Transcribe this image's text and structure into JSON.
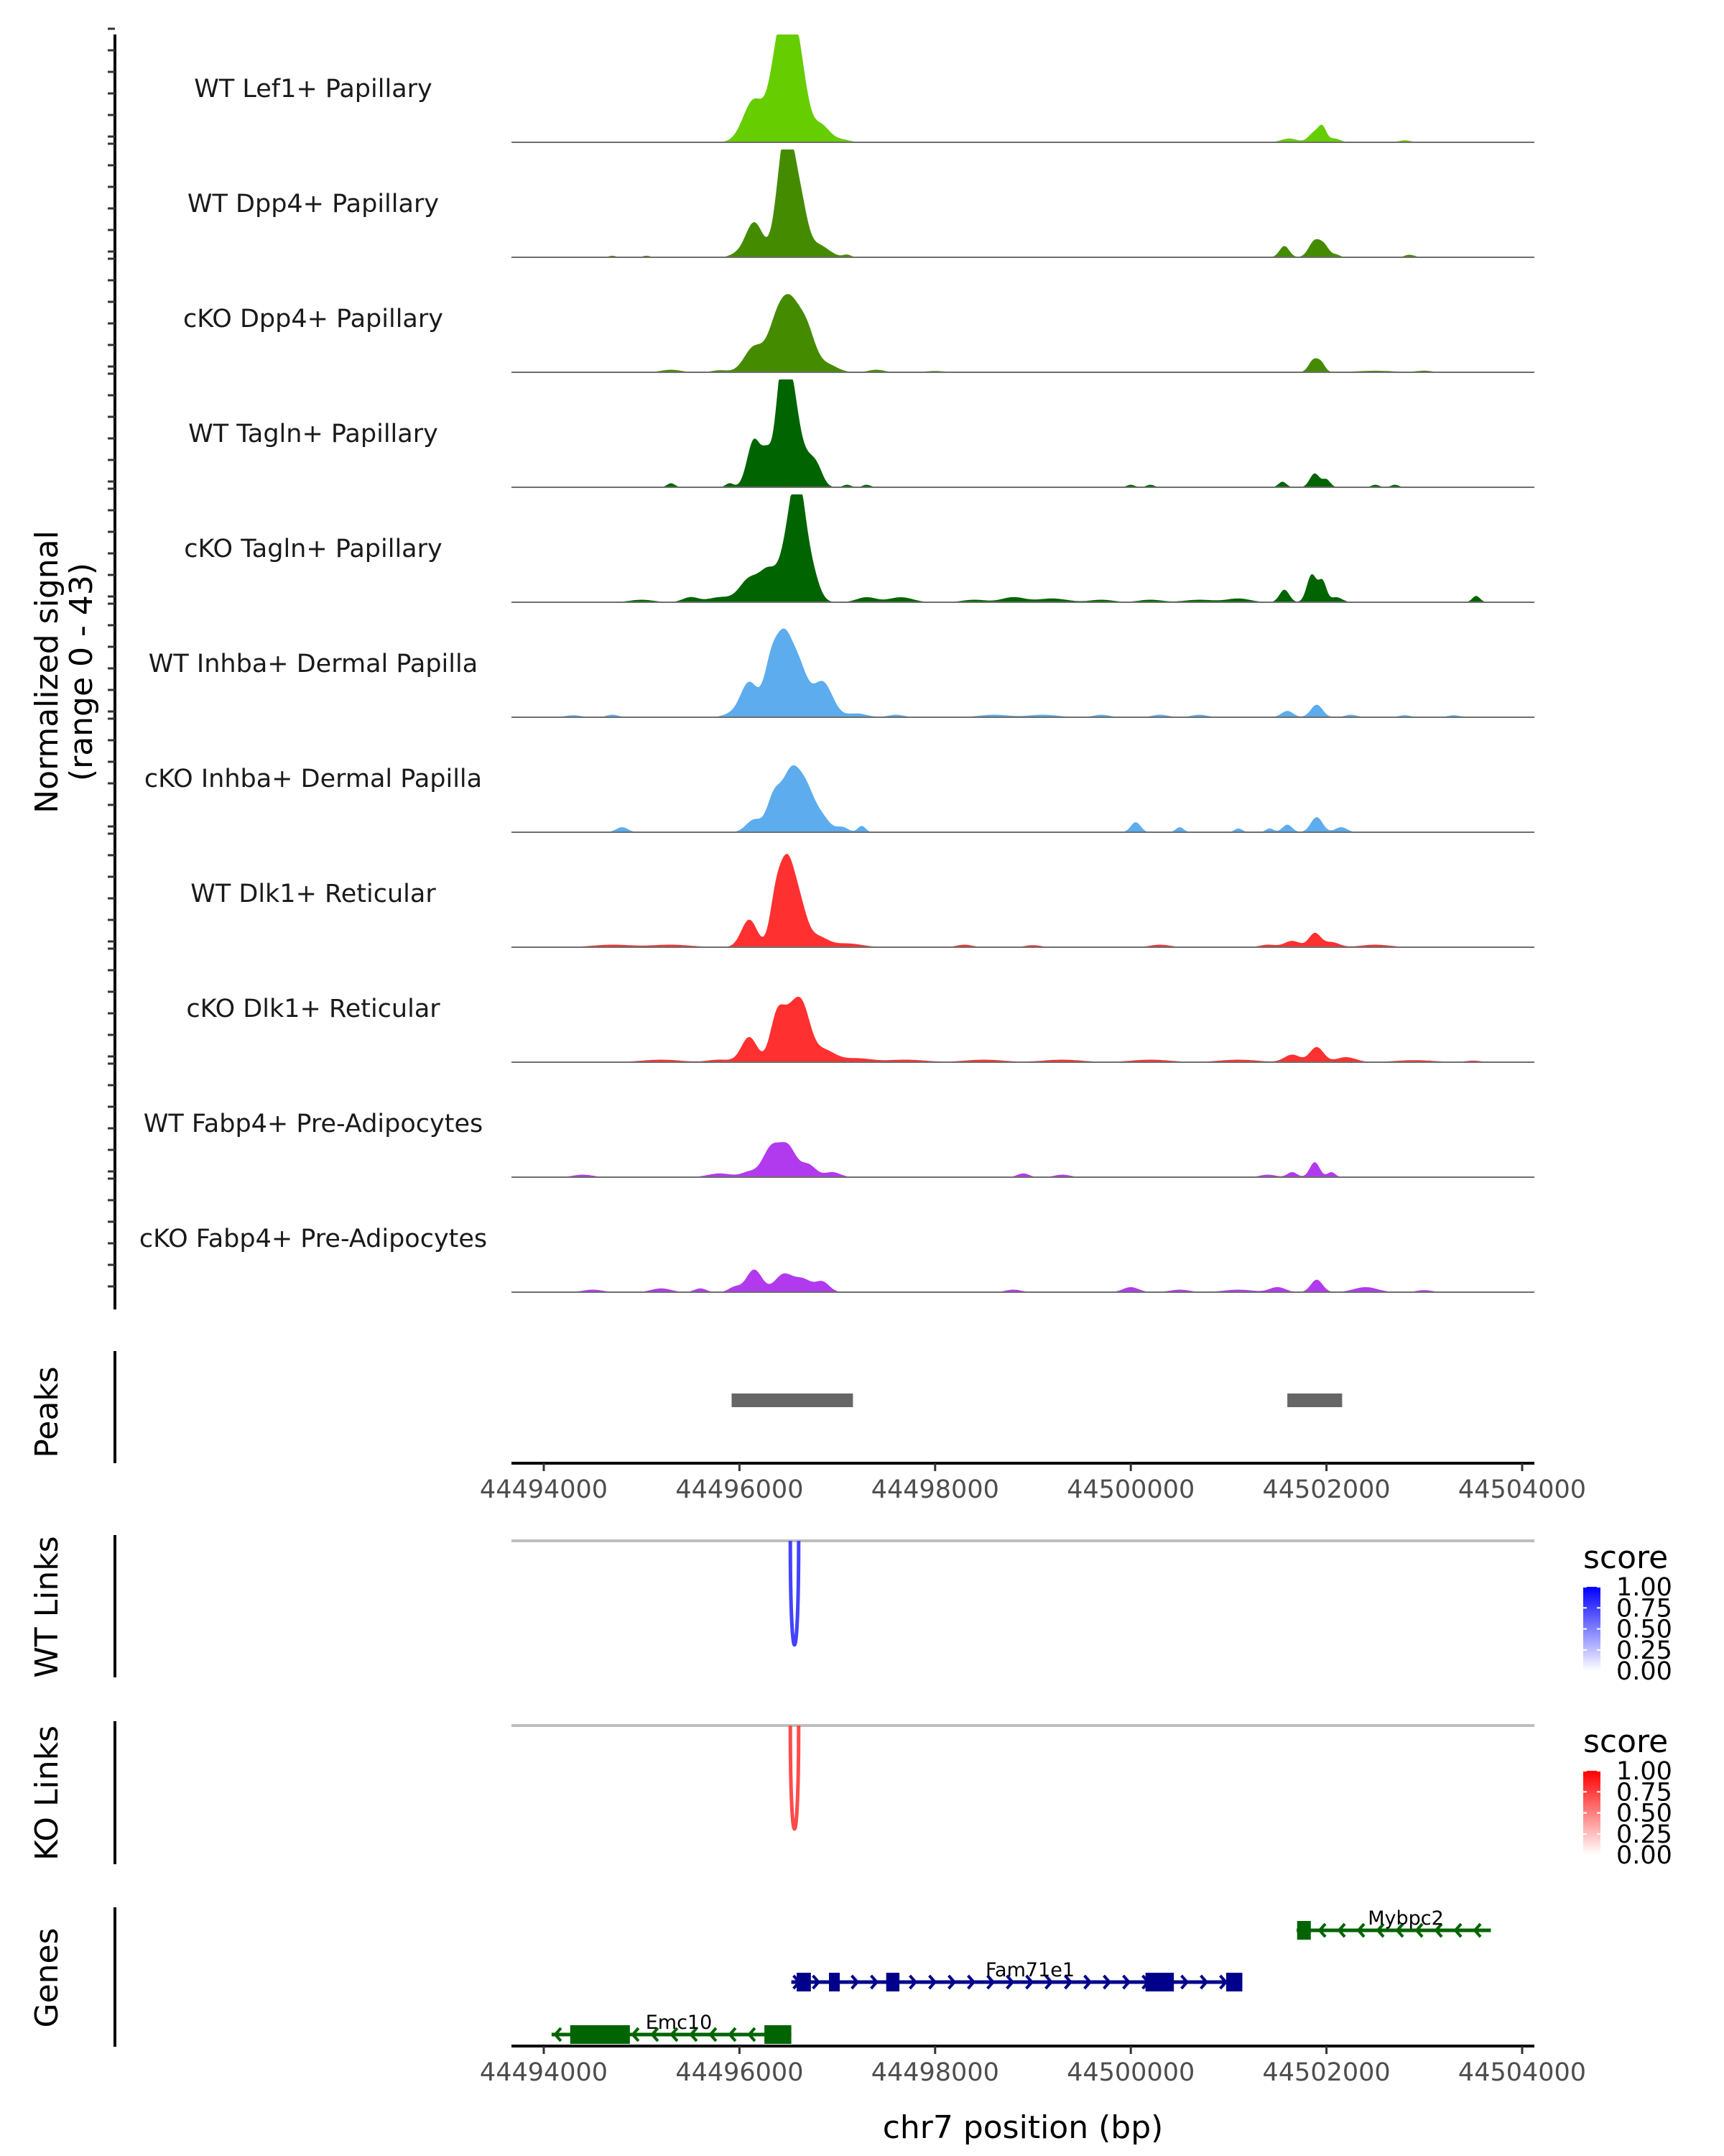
{
  "chart_data": {
    "type": "area",
    "title": "",
    "region": {
      "chrom": "chr7",
      "start": 44493700,
      "end": 44504100
    },
    "xlabel": "chr7 position (bp)",
    "x_ticks": [
      44494000,
      44496000,
      44498000,
      44500000,
      44502000,
      44504000
    ],
    "x_tick_labels": [
      "44494000",
      "44496000",
      "44498000",
      "44500000",
      "44502000",
      "44504000"
    ],
    "coverage": {
      "ylabel_line1": "Normalized signal",
      "ylabel_line2": "(range 0 - 43)",
      "ylim": [
        0,
        43
      ],
      "tracks": [
        {
          "name": "WT Lef1+ Papillary",
          "color": "#66CD00",
          "peaks": [
            [
              44496150,
              17,
              110
            ],
            [
              44496380,
              24,
              80
            ],
            [
              44496500,
              41,
              90
            ],
            [
              44496620,
              22,
              80
            ],
            [
              44496830,
              7,
              90
            ],
            [
              44497050,
              1,
              80
            ],
            [
              44501620,
              1.5,
              80
            ],
            [
              44501880,
              4,
              60
            ],
            [
              44501960,
              5,
              40
            ],
            [
              44502080,
              1.5,
              60
            ],
            [
              44502800,
              0.8,
              60
            ]
          ]
        },
        {
          "name": "WT Dpp4+ Papillary",
          "color": "#458B00",
          "peaks": [
            [
              44495950,
              0.8,
              60
            ],
            [
              44496150,
              14,
              90
            ],
            [
              44496420,
              22,
              70
            ],
            [
              44496500,
              37,
              70
            ],
            [
              44496620,
              20,
              70
            ],
            [
              44496800,
              5,
              110
            ],
            [
              44497100,
              1,
              40
            ],
            [
              44501570,
              4.5,
              50
            ],
            [
              44501880,
              6.5,
              60
            ],
            [
              44501980,
              4,
              50
            ],
            [
              44502100,
              1,
              40
            ],
            [
              44502850,
              1,
              50
            ],
            [
              44494700,
              0.6,
              40
            ],
            [
              44495050,
              0.6,
              40
            ]
          ]
        },
        {
          "name": "cKO Dpp4+ Papillary",
          "color": "#458B00",
          "peaks": [
            [
              44495300,
              1,
              100
            ],
            [
              44495800,
              0.8,
              80
            ],
            [
              44496150,
              10,
              100
            ],
            [
              44496380,
              18,
              90
            ],
            [
              44496520,
              22,
              90
            ],
            [
              44496680,
              17,
              90
            ],
            [
              44496900,
              3,
              100
            ],
            [
              44497400,
              1,
              80
            ],
            [
              44498000,
              0.5,
              100
            ],
            [
              44501870,
              5,
              50
            ],
            [
              44501950,
              3,
              40
            ],
            [
              44502500,
              0.6,
              200
            ],
            [
              44503000,
              0.6,
              80
            ]
          ]
        },
        {
          "name": "WT Tagln+ Papillary",
          "color": "#006400",
          "peaks": [
            [
              44495300,
              1.6,
              40
            ],
            [
              44495900,
              1.6,
              40
            ],
            [
              44496150,
              19,
              70
            ],
            [
              44496280,
              11,
              50
            ],
            [
              44496420,
              30,
              60
            ],
            [
              44496520,
              41,
              80
            ],
            [
              44496700,
              10,
              80
            ],
            [
              44496800,
              5,
              60
            ],
            [
              44497100,
              1,
              40
            ],
            [
              44497300,
              1,
              40
            ],
            [
              44500000,
              1,
              40
            ],
            [
              44500200,
              1,
              40
            ],
            [
              44501550,
              2.2,
              40
            ],
            [
              44501880,
              5.5,
              50
            ],
            [
              44502000,
              3,
              40
            ],
            [
              44502500,
              1,
              40
            ],
            [
              44502700,
              1,
              40
            ]
          ]
        },
        {
          "name": "cKO Tagln+ Papillary",
          "color": "#006400",
          "peaks": [
            [
              44495000,
              1,
              120
            ],
            [
              44495500,
              2,
              80
            ],
            [
              44495800,
              2,
              120
            ],
            [
              44496100,
              9,
              100
            ],
            [
              44496300,
              12,
              90
            ],
            [
              44496500,
              22,
              80
            ],
            [
              44496600,
              37,
              70
            ],
            [
              44496720,
              14,
              80
            ],
            [
              44497300,
              2,
              100
            ],
            [
              44497650,
              2,
              120
            ],
            [
              44498400,
              1,
              120
            ],
            [
              44498800,
              2,
              120
            ],
            [
              44499200,
              1.5,
              150
            ],
            [
              44499700,
              1,
              120
            ],
            [
              44500200,
              1,
              120
            ],
            [
              44500700,
              1,
              150
            ],
            [
              44501100,
              1.5,
              120
            ],
            [
              44501570,
              5,
              50
            ],
            [
              44501850,
              11,
              50
            ],
            [
              44501960,
              8,
              40
            ],
            [
              44502100,
              2,
              60
            ],
            [
              44503530,
              2.5,
              40
            ]
          ]
        },
        {
          "name": "WT Inhba+ Dermal Papilla",
          "color": "#5CACEE",
          "peaks": [
            [
              44494300,
              0.8,
              80
            ],
            [
              44494700,
              1,
              60
            ],
            [
              44495900,
              1,
              80
            ],
            [
              44496100,
              14,
              90
            ],
            [
              44496320,
              19,
              70
            ],
            [
              44496450,
              27,
              80
            ],
            [
              44496600,
              20,
              90
            ],
            [
              44496850,
              14,
              100
            ],
            [
              44497200,
              1.5,
              100
            ],
            [
              44497600,
              1,
              80
            ],
            [
              44498600,
              1,
              150
            ],
            [
              44499100,
              1,
              150
            ],
            [
              44499700,
              1,
              80
            ],
            [
              44500300,
              1,
              80
            ],
            [
              44500700,
              1,
              80
            ],
            [
              44501600,
              2.5,
              60
            ],
            [
              44501900,
              5,
              60
            ],
            [
              44502250,
              1,
              60
            ],
            [
              44502800,
              0.8,
              60
            ],
            [
              44503300,
              0.8,
              60
            ]
          ]
        },
        {
          "name": "cKO Inhba+ Dermal Papilla",
          "color": "#5CACEE",
          "peaks": [
            [
              44494800,
              2,
              60
            ],
            [
              44496150,
              5,
              80
            ],
            [
              44496350,
              13,
              70
            ],
            [
              44496520,
              22,
              90
            ],
            [
              44496680,
              16,
              90
            ],
            [
              44496850,
              5,
              80
            ],
            [
              44497050,
              2,
              60
            ],
            [
              44497250,
              2.5,
              40
            ],
            [
              44500050,
              4,
              50
            ],
            [
              44500500,
              2,
              40
            ],
            [
              44501100,
              1.5,
              40
            ],
            [
              44501420,
              1.5,
              40
            ],
            [
              44501600,
              3,
              50
            ],
            [
              44501900,
              6,
              60
            ],
            [
              44502150,
              2,
              60
            ]
          ]
        },
        {
          "name": "WT Dlk1+ Reticular",
          "color": "#FF3030",
          "peaks": [
            [
              44494700,
              1,
              200
            ],
            [
              44495300,
              1,
              200
            ],
            [
              44496100,
              11,
              80
            ],
            [
              44496370,
              18,
              60
            ],
            [
              44496480,
              28,
              70
            ],
            [
              44496600,
              18,
              80
            ],
            [
              44496800,
              4,
              100
            ],
            [
              44497100,
              1.5,
              150
            ],
            [
              44498300,
              1,
              80
            ],
            [
              44499000,
              0.8,
              80
            ],
            [
              44500300,
              1,
              100
            ],
            [
              44501400,
              1,
              80
            ],
            [
              44501650,
              2.5,
              80
            ],
            [
              44501880,
              5.5,
              60
            ],
            [
              44502050,
              2,
              80
            ],
            [
              44502500,
              1,
              150
            ]
          ]
        },
        {
          "name": "cKO Dlk1+ Reticular",
          "color": "#FF3030",
          "peaks": [
            [
              44495200,
              1,
              200
            ],
            [
              44495800,
              1,
              120
            ],
            [
              44496100,
              10,
              80
            ],
            [
              44496380,
              16,
              70
            ],
            [
              44496520,
              17,
              90
            ],
            [
              44496650,
              17,
              80
            ],
            [
              44496850,
              5,
              120
            ],
            [
              44497200,
              1.5,
              150
            ],
            [
              44497700,
              1,
              200
            ],
            [
              44498500,
              1,
              200
            ],
            [
              44499300,
              1,
              200
            ],
            [
              44500200,
              1,
              200
            ],
            [
              44501100,
              1,
              200
            ],
            [
              44501650,
              3,
              80
            ],
            [
              44501900,
              6,
              70
            ],
            [
              44502200,
              2,
              100
            ],
            [
              44502900,
              0.8,
              200
            ],
            [
              44503500,
              0.6,
              80
            ]
          ]
        },
        {
          "name": "WT Fabp4+ Pre-Adipocytes",
          "color": "#B23AEE",
          "peaks": [
            [
              44494400,
              1,
              100
            ],
            [
              44495800,
              1.5,
              120
            ],
            [
              44496100,
              2,
              80
            ],
            [
              44496330,
              12,
              90
            ],
            [
              44496500,
              11,
              80
            ],
            [
              44496700,
              5,
              80
            ],
            [
              44496950,
              2,
              80
            ],
            [
              44498900,
              1.5,
              60
            ],
            [
              44499300,
              1,
              80
            ],
            [
              44501400,
              1,
              80
            ],
            [
              44501650,
              2,
              50
            ],
            [
              44501880,
              6,
              50
            ],
            [
              44502050,
              2,
              40
            ]
          ]
        },
        {
          "name": "cKO Fabp4+ Pre-Adipocytes",
          "color": "#B23AEE",
          "peaks": [
            [
              44494500,
              1,
              100
            ],
            [
              44495200,
              1.5,
              100
            ],
            [
              44495600,
              1.5,
              60
            ],
            [
              44495950,
              2,
              60
            ],
            [
              44496150,
              9,
              80
            ],
            [
              44496450,
              7,
              90
            ],
            [
              44496650,
              5,
              90
            ],
            [
              44496850,
              4,
              70
            ],
            [
              44498800,
              1,
              80
            ],
            [
              44500000,
              2,
              80
            ],
            [
              44500500,
              1,
              100
            ],
            [
              44501100,
              1,
              150
            ],
            [
              44501500,
              2,
              80
            ],
            [
              44501900,
              5,
              60
            ],
            [
              44502400,
              2,
              120
            ],
            [
              44503000,
              0.8,
              80
            ]
          ]
        }
      ]
    },
    "peaks_track": {
      "label": "Peaks",
      "color": "#666666",
      "regions": [
        [
          44495920,
          44497160
        ],
        [
          44501600,
          44502160
        ]
      ]
    },
    "links": [
      {
        "label": "WT Links",
        "color_low": "#FFFFFF",
        "color_high": "#0000FF",
        "links": [
          {
            "start": 44496520,
            "end": 44496605,
            "score": 0.75
          }
        ],
        "legend": {
          "title": "score",
          "ticks": [
            "1.00",
            "0.75",
            "0.50",
            "0.25",
            "0.00"
          ]
        }
      },
      {
        "label": "KO Links",
        "color_low": "#FFFFFF",
        "color_high": "#FF0000",
        "links": [
          {
            "start": 44496520,
            "end": 44496605,
            "score": 0.7
          }
        ],
        "legend": {
          "title": "score",
          "ticks": [
            "1.00",
            "0.75",
            "0.50",
            "0.25",
            "0.00"
          ]
        }
      }
    ],
    "genes": {
      "label": "Genes",
      "items": [
        {
          "name": "Mybpc2",
          "strand": "-",
          "color": "#006400",
          "start": 44501695,
          "end": 44503680,
          "row": 0,
          "exons": [
            [
              44501700,
              44501840
            ]
          ]
        },
        {
          "name": "Fam71e1",
          "strand": "+",
          "color": "#00008B",
          "start": 44496530,
          "end": 44501140,
          "row": 1,
          "exons": [
            [
              44496585,
              44496730
            ],
            [
              44496915,
              44497025
            ],
            [
              44497500,
              44497635
            ],
            [
              44500150,
              44500440
            ],
            [
              44500975,
              44501140
            ]
          ]
        },
        {
          "name": "Emc10",
          "strand": "-",
          "color": "#006400",
          "start": 44494080,
          "end": 44496530,
          "row": 2,
          "exons": [
            [
              44494270,
              44494880
            ],
            [
              44496255,
              44496530
            ]
          ]
        }
      ]
    }
  }
}
